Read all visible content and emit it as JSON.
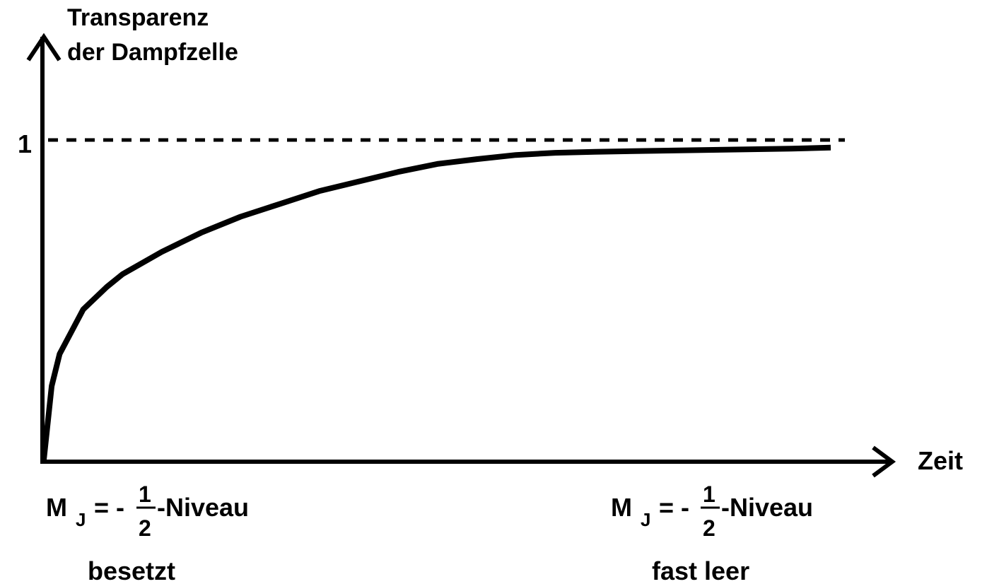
{
  "chart_data": {
    "type": "line",
    "ylabel_line1": "Transparenz",
    "ylabel_line2": "der Dampfzelle",
    "xlabel": "Zeit",
    "y_tick_label": "1",
    "y_reference": 1,
    "x_range": [
      0,
      1
    ],
    "ylim": [
      0,
      1
    ],
    "grid": false,
    "series": [
      {
        "x": [
          0,
          0.01,
          0.02,
          0.05,
          0.08,
          0.1,
          0.15,
          0.2,
          0.25,
          0.3,
          0.35,
          0.4,
          0.45,
          0.5,
          0.55,
          0.6,
          0.65,
          0.7,
          0.75,
          0.8,
          0.85,
          0.9,
          0.95,
          1.0
        ],
        "y": [
          0,
          0.23,
          0.33,
          0.47,
          0.54,
          0.58,
          0.65,
          0.71,
          0.76,
          0.8,
          0.84,
          0.87,
          0.9,
          0.925,
          0.94,
          0.953,
          0.96,
          0.963,
          0.965,
          0.967,
          0.969,
          0.971,
          0.973,
          0.976
        ]
      }
    ],
    "annotations": {
      "left": {
        "symbol": "M",
        "subscript": "J",
        "equals": "= -",
        "numerator": "1",
        "denominator": "2",
        "suffix": "-Niveau",
        "caption": "besetzt"
      },
      "right": {
        "symbol": "M",
        "subscript": "J",
        "equals": "= -",
        "numerator": "1",
        "denominator": "2",
        "suffix": "-Niveau",
        "caption": "fast leer"
      }
    },
    "colors": {
      "line": "#000000",
      "background": "#ffffff"
    }
  }
}
